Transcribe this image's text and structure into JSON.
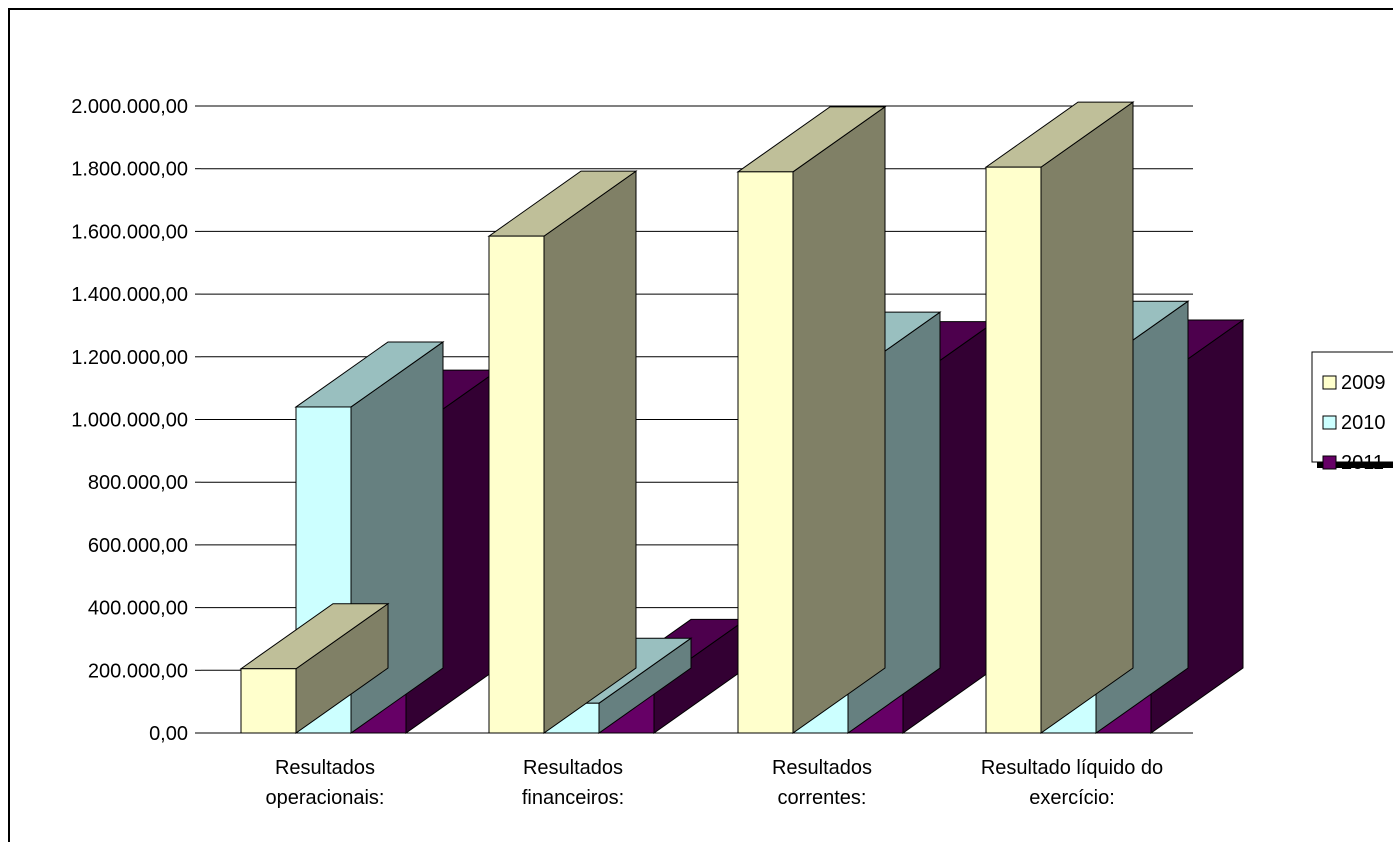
{
  "chart_data": {
    "type": "bar",
    "categories": [
      [
        "Resultados",
        "operacionais:"
      ],
      [
        "Resultados",
        "financeiros:"
      ],
      [
        "Resultados",
        "correntes:"
      ],
      [
        "Resultado líquido do",
        "exercício:"
      ]
    ],
    "series": [
      {
        "name": "2009",
        "values": [
          205000,
          1585000,
          1790000,
          1805000
        ]
      },
      {
        "name": "2010",
        "values": [
          1040000,
          95000,
          1135000,
          1170000
        ]
      },
      {
        "name": "2011",
        "values": [
          950000,
          155000,
          1105000,
          1110000
        ]
      }
    ],
    "ylim": [
      0,
      2000000
    ],
    "yticks": [
      "0,00",
      "200.000,00",
      "400.000,00",
      "600.000,00",
      "800.000,00",
      "1.000.000,00",
      "1.200.000,00",
      "1.400.000,00",
      "1.600.000,00",
      "1.800.000,00",
      "2.000.000,00"
    ],
    "grid": true,
    "legend_position": "right",
    "colors": {
      "2009": {
        "front": "#FFFFCC",
        "side": "#808066",
        "top": "#BFBF99"
      },
      "2010": {
        "front": "#CCFFFF",
        "side": "#668080",
        "top": "#99BFBF"
      },
      "2011": {
        "front": "#660066",
        "side": "#330033",
        "top": "#4D004D"
      }
    }
  }
}
